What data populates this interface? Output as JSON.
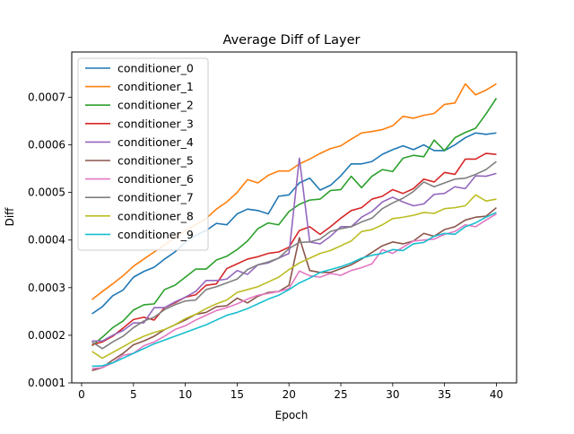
{
  "chart_data": {
    "type": "line",
    "title": "Average Diff of Layer",
    "xlabel": "Epoch",
    "ylabel": "Diff",
    "xlim": [
      -0.95,
      41.95
    ],
    "ylim": [
      0.0001,
      0.000795
    ],
    "xticks": [
      0,
      5,
      10,
      15,
      20,
      25,
      30,
      35,
      40
    ],
    "xtick_labels": [
      "0",
      "5",
      "10",
      "15",
      "20",
      "25",
      "30",
      "35",
      "40"
    ],
    "yticks": [
      0.0001,
      0.0002,
      0.0003,
      0.0004,
      0.0005,
      0.0006,
      0.0007
    ],
    "ytick_labels": [
      "0.0001",
      "0.0002",
      "0.0003",
      "0.0004",
      "0.0005",
      "0.0006",
      "0.0007"
    ],
    "grid": false,
    "legend_position": "top-left",
    "x": [
      1,
      2,
      3,
      4,
      5,
      6,
      7,
      8,
      9,
      10,
      11,
      12,
      13,
      14,
      15,
      16,
      17,
      18,
      19,
      20,
      21,
      22,
      23,
      24,
      25,
      26,
      27,
      28,
      29,
      30,
      31,
      32,
      33,
      34,
      35,
      36,
      37,
      38,
      39,
      40
    ],
    "series": [
      {
        "name": "conditioner_0",
        "color": "#1f77b4",
        "values": [
          0.000245,
          0.00026,
          0.000283,
          0.000295,
          0.000322,
          0.000334,
          0.000343,
          0.00036,
          0.000375,
          0.000395,
          0.00041,
          0.00042,
          0.000435,
          0.000432,
          0.000455,
          0.000465,
          0.000462,
          0.000455,
          0.000492,
          0.000495,
          0.00052,
          0.00053,
          0.000505,
          0.000515,
          0.000535,
          0.00056,
          0.00056,
          0.000565,
          0.00058,
          0.00059,
          0.000598,
          0.00059,
          0.0006,
          0.000588,
          0.000588,
          0.0006,
          0.000615,
          0.000625,
          0.000622,
          0.000625
        ]
      },
      {
        "name": "conditioner_1",
        "color": "#ff7f0e",
        "values": [
          0.000275,
          0.000292,
          0.000308,
          0.000325,
          0.000345,
          0.00036,
          0.000375,
          0.00039,
          0.000405,
          0.00042,
          0.000432,
          0.000445,
          0.000465,
          0.00048,
          0.0005,
          0.000527,
          0.00052,
          0.000536,
          0.000545,
          0.000545,
          0.00056,
          0.00057,
          0.000582,
          0.000592,
          0.000598,
          0.000612,
          0.000625,
          0.000628,
          0.000632,
          0.00064,
          0.00066,
          0.000656,
          0.000662,
          0.000666,
          0.000685,
          0.000688,
          0.000728,
          0.000705,
          0.000715,
          0.000728
        ]
      },
      {
        "name": "conditioner_2",
        "color": "#2ca02c",
        "values": [
          0.000178,
          0.000196,
          0.000216,
          0.00023,
          0.000253,
          0.000264,
          0.000266,
          0.000296,
          0.000305,
          0.000322,
          0.000339,
          0.000339,
          0.000358,
          0.000366,
          0.00038,
          0.000398,
          0.000424,
          0.000436,
          0.000432,
          0.00046,
          0.000475,
          0.000484,
          0.000486,
          0.000504,
          0.000506,
          0.000534,
          0.00051,
          0.000534,
          0.000548,
          0.000544,
          0.000572,
          0.000578,
          0.000575,
          0.00061,
          0.000588,
          0.000615,
          0.000626,
          0.000635,
          0.000665,
          0.000698
        ]
      },
      {
        "name": "conditioner_3",
        "color": "#d62728",
        "values": [
          0.00018,
          0.000186,
          0.000198,
          0.000215,
          0.000233,
          0.000238,
          0.000232,
          0.000258,
          0.000268,
          0.00028,
          0.000285,
          0.000305,
          0.000308,
          0.00034,
          0.00035,
          0.00036,
          0.000365,
          0.000372,
          0.000375,
          0.000385,
          0.00042,
          0.000428,
          0.000412,
          0.000428,
          0.000446,
          0.000462,
          0.000468,
          0.000486,
          0.000492,
          0.000506,
          0.000498,
          0.000508,
          0.000528,
          0.000522,
          0.000542,
          0.000538,
          0.00057,
          0.00057,
          0.000582,
          0.00058
        ]
      },
      {
        "name": "conditioner_4",
        "color": "#9467bd",
        "values": [
          0.000188,
          0.000188,
          0.0002,
          0.00021,
          0.000226,
          0.000226,
          0.000258,
          0.000258,
          0.00027,
          0.00028,
          0.000292,
          0.000315,
          0.000315,
          0.000318,
          0.000336,
          0.000328,
          0.000348,
          0.000352,
          0.000362,
          0.000372,
          0.000572,
          0.000396,
          0.000392,
          0.000408,
          0.000428,
          0.000428,
          0.000448,
          0.00046,
          0.00048,
          0.00049,
          0.00048,
          0.000472,
          0.000476,
          0.000496,
          0.000498,
          0.000512,
          0.000508,
          0.000535,
          0.000534,
          0.00054
        ]
      },
      {
        "name": "conditioner_5",
        "color": "#8c564b",
        "values": [
          0.000126,
          0.000132,
          0.000148,
          0.000162,
          0.00018,
          0.000188,
          0.000198,
          0.000212,
          0.000222,
          0.000232,
          0.000244,
          0.000248,
          0.00026,
          0.000262,
          0.000278,
          0.000268,
          0.000282,
          0.00029,
          0.000292,
          0.000305,
          0.000405,
          0.000336,
          0.000332,
          0.000332,
          0.00034,
          0.000348,
          0.00036,
          0.000374,
          0.000388,
          0.000396,
          0.000392,
          0.000398,
          0.000414,
          0.000408,
          0.000422,
          0.000428,
          0.000442,
          0.000448,
          0.00045,
          0.000468
        ]
      },
      {
        "name": "conditioner_6",
        "color": "#e377c2",
        "values": [
          0.00013,
          0.000132,
          0.000142,
          0.000158,
          0.000162,
          0.000178,
          0.000186,
          0.000198,
          0.000212,
          0.00022,
          0.000232,
          0.000242,
          0.000252,
          0.000258,
          0.000266,
          0.000276,
          0.000284,
          0.000288,
          0.000292,
          0.000298,
          0.000335,
          0.000325,
          0.000322,
          0.00033,
          0.000326,
          0.000336,
          0.000342,
          0.00035,
          0.00038,
          0.000372,
          0.000385,
          0.000398,
          0.0004,
          0.000402,
          0.000412,
          0.000418,
          0.000432,
          0.000428,
          0.000442,
          0.000455
        ]
      },
      {
        "name": "conditioner_7",
        "color": "#7f7f7f",
        "values": [
          0.000186,
          0.000172,
          0.000186,
          0.000198,
          0.000216,
          0.00023,
          0.000238,
          0.000254,
          0.000264,
          0.000272,
          0.000274,
          0.000296,
          0.000302,
          0.00031,
          0.000318,
          0.000338,
          0.000348,
          0.000354,
          0.000362,
          0.000382,
          0.000395,
          0.000396,
          0.000402,
          0.000418,
          0.000424,
          0.000428,
          0.000438,
          0.000446,
          0.000466,
          0.000478,
          0.000488,
          0.000502,
          0.000522,
          0.000512,
          0.00052,
          0.000528,
          0.00053,
          0.000538,
          0.000548,
          0.000565
        ]
      },
      {
        "name": "conditioner_8",
        "color": "#bcbd22",
        "values": [
          0.000166,
          0.000152,
          0.000164,
          0.000176,
          0.000188,
          0.000198,
          0.000206,
          0.000212,
          0.000222,
          0.000235,
          0.000244,
          0.000256,
          0.000266,
          0.000274,
          0.00029,
          0.000296,
          0.000302,
          0.000312,
          0.000322,
          0.000338,
          0.000352,
          0.000362,
          0.000372,
          0.000378,
          0.000388,
          0.000398,
          0.000418,
          0.000422,
          0.000432,
          0.000445,
          0.000448,
          0.000452,
          0.000458,
          0.000456,
          0.000466,
          0.000468,
          0.000472,
          0.000495,
          0.000482,
          0.000486
        ]
      },
      {
        "name": "conditioner_9",
        "color": "#17becf",
        "values": [
          0.000135,
          0.000136,
          0.000142,
          0.000152,
          0.000162,
          0.000172,
          0.000182,
          0.00019,
          0.000198,
          0.000206,
          0.000214,
          0.000222,
          0.000232,
          0.000242,
          0.000248,
          0.000256,
          0.000266,
          0.000276,
          0.000284,
          0.000296,
          0.00031,
          0.00032,
          0.000332,
          0.000338,
          0.000344,
          0.000352,
          0.000362,
          0.000368,
          0.000372,
          0.00038,
          0.000378,
          0.000392,
          0.000395,
          0.000408,
          0.000414,
          0.000412,
          0.000428,
          0.000436,
          0.000448,
          0.000458
        ]
      }
    ]
  }
}
